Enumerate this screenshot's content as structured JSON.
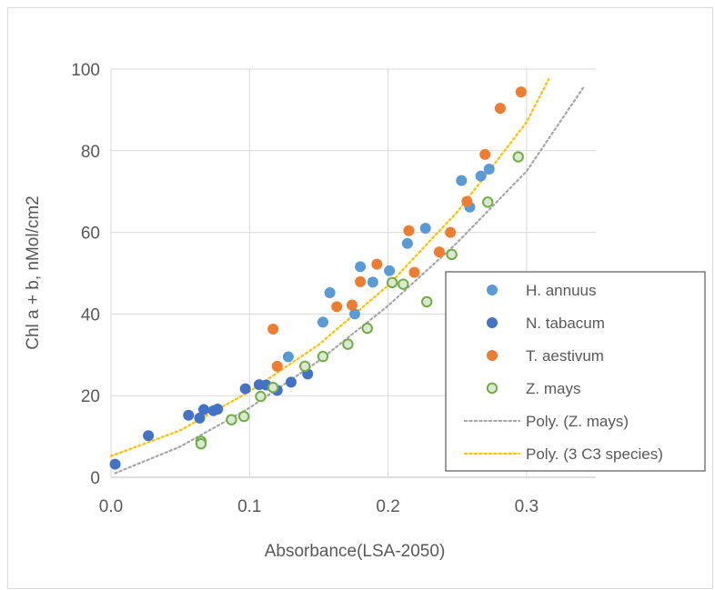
{
  "chart_data": {
    "type": "scatter",
    "title": "",
    "xlabel": "Absorbance(LSA-2050)",
    "ylabel": "Chl a + b, nMol/cm2",
    "xlim": [
      0,
      0.35
    ],
    "ylim": [
      0,
      100
    ],
    "xticks": [
      "0.0",
      "0.1",
      "0.2",
      "0.3"
    ],
    "xtick_values": [
      0,
      0.1,
      0.2,
      0.3
    ],
    "yticks": [
      "0",
      "20",
      "40",
      "60",
      "80",
      "100"
    ],
    "ytick_values": [
      0,
      20,
      40,
      60,
      80,
      100
    ],
    "grid": "vertical and horizontal",
    "legend_position": "right",
    "series": [
      {
        "name": "H. annuus",
        "marker": "filled-circle",
        "color": "#5B9BD5",
        "points": [
          [
            0.128,
            29.5
          ],
          [
            0.153,
            38.0
          ],
          [
            0.158,
            45.2
          ],
          [
            0.176,
            40.0
          ],
          [
            0.18,
            51.6
          ],
          [
            0.189,
            47.8
          ],
          [
            0.201,
            50.6
          ],
          [
            0.214,
            57.3
          ],
          [
            0.227,
            61.0
          ],
          [
            0.253,
            72.7
          ],
          [
            0.259,
            66.2
          ],
          [
            0.267,
            73.8
          ],
          [
            0.273,
            75.5
          ]
        ]
      },
      {
        "name": "N. tabacum",
        "marker": "filled-circle",
        "color": "#4472C4",
        "points": [
          [
            0.003,
            3.2
          ],
          [
            0.027,
            10.2
          ],
          [
            0.056,
            15.2
          ],
          [
            0.064,
            14.5
          ],
          [
            0.067,
            16.6
          ],
          [
            0.074,
            16.3
          ],
          [
            0.077,
            16.7
          ],
          [
            0.097,
            21.7
          ],
          [
            0.107,
            22.7
          ],
          [
            0.112,
            22.6
          ],
          [
            0.12,
            21.3
          ],
          [
            0.13,
            23.3
          ],
          [
            0.142,
            25.3
          ]
        ]
      },
      {
        "name": "T. aestivum",
        "marker": "filled-circle",
        "color": "#ED7D31",
        "points": [
          [
            0.117,
            36.3
          ],
          [
            0.12,
            27.2
          ],
          [
            0.163,
            41.8
          ],
          [
            0.174,
            42.2
          ],
          [
            0.18,
            47.9
          ],
          [
            0.192,
            52.2
          ],
          [
            0.215,
            60.4
          ],
          [
            0.219,
            50.2
          ],
          [
            0.237,
            55.2
          ],
          [
            0.245,
            60.0
          ],
          [
            0.257,
            67.6
          ],
          [
            0.27,
            79.1
          ],
          [
            0.281,
            90.4
          ],
          [
            0.296,
            94.4
          ]
        ]
      },
      {
        "name": "Z. mays",
        "marker": "hollow-circle",
        "color": "#70AD47",
        "points": [
          [
            0.065,
            8.8
          ],
          [
            0.065,
            8.2
          ],
          [
            0.087,
            14.1
          ],
          [
            0.096,
            14.9
          ],
          [
            0.108,
            19.8
          ],
          [
            0.117,
            22.0
          ],
          [
            0.14,
            27.2
          ],
          [
            0.153,
            29.6
          ],
          [
            0.171,
            32.6
          ],
          [
            0.185,
            36.5
          ],
          [
            0.203,
            47.7
          ],
          [
            0.211,
            47.3
          ],
          [
            0.228,
            43.0
          ],
          [
            0.246,
            54.6
          ],
          [
            0.272,
            67.4
          ],
          [
            0.294,
            78.5
          ]
        ]
      }
    ],
    "trendlines": [
      {
        "name": "Poly. (Z. mays)",
        "style": "dotted",
        "color": "#A6A6A6",
        "x": [
          0.003,
          0.05,
          0.1,
          0.15,
          0.2,
          0.25,
          0.3,
          0.342
        ],
        "y": [
          1.0,
          7.5,
          17.0,
          28.5,
          42.0,
          57.5,
          75.0,
          96.0
        ]
      },
      {
        "name": "Poly. (3 C3 species)",
        "style": "dotted",
        "color": "#FFC000",
        "x": [
          0.0,
          0.05,
          0.1,
          0.15,
          0.2,
          0.25,
          0.3,
          0.316
        ],
        "y": [
          5.2,
          11.5,
          21.0,
          32.5,
          47.0,
          65.0,
          87.0,
          97.5
        ]
      }
    ],
    "legend": [
      {
        "label": "H. annuus",
        "kind": "filled",
        "color": "#5B9BD5"
      },
      {
        "label": "N. tabacum",
        "kind": "filled",
        "color": "#4472C4"
      },
      {
        "label": "T. aestivum",
        "kind": "filled",
        "color": "#ED7D31"
      },
      {
        "label": "Z. mays",
        "kind": "hollow",
        "color": "#70AD47"
      },
      {
        "label": "Poly. (Z. mays)",
        "kind": "dotted",
        "color": "#A6A6A6"
      },
      {
        "label": "Poly. (3 C3 species)",
        "kind": "dotted",
        "color": "#FFC000"
      }
    ]
  }
}
